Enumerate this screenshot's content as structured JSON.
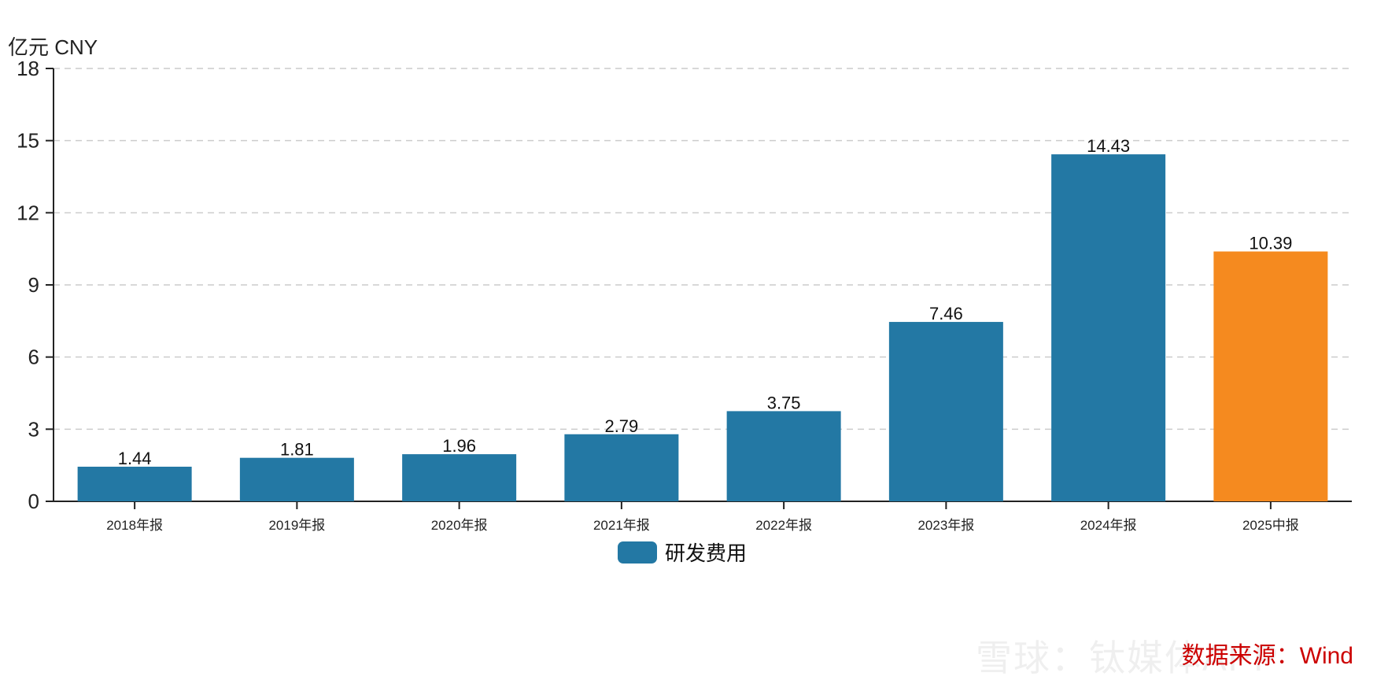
{
  "chart_data": {
    "type": "bar",
    "unit_label": "亿元  CNY",
    "categories": [
      "2018年报",
      "2019年报",
      "2020年报",
      "2021年报",
      "2022年报",
      "2023年报",
      "2024年报",
      "2025中报"
    ],
    "series": [
      {
        "name": "研发费用",
        "values": [
          1.44,
          1.81,
          1.96,
          2.79,
          3.75,
          7.46,
          14.43,
          10.39
        ]
      }
    ],
    "value_labels": [
      "1.44",
      "1.81",
      "1.96",
      "2.79",
      "3.75",
      "7.46",
      "14.43",
      "10.39"
    ],
    "bar_colors": [
      "#2378a4",
      "#2378a4",
      "#2378a4",
      "#2378a4",
      "#2378a4",
      "#2378a4",
      "#2378a4",
      "#f58a1f"
    ],
    "ylim": [
      0,
      18
    ],
    "yticks": [
      0,
      3,
      6,
      9,
      12,
      15,
      18
    ],
    "grid": true,
    "legend_position": "bottom-center"
  },
  "source_text": "数据来源：Wind",
  "watermark_text": "雪球：钛媒体APP"
}
